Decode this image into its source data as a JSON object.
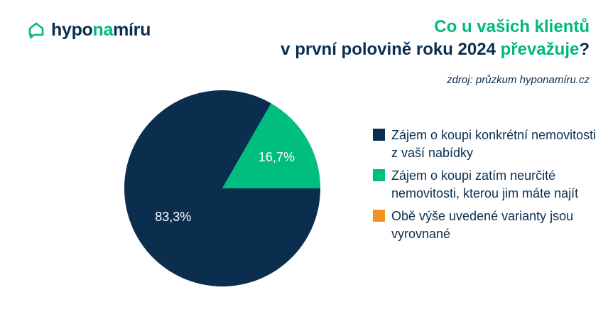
{
  "brand": {
    "name_prefix": "hypo",
    "name_highlight": "na",
    "name_suffix": "míru",
    "logo_icon": "house-chat-icon"
  },
  "header": {
    "title_line1": "Co u vašich klientů",
    "title_line2": "v první polovině roku 2024",
    "title_highlight": "převažuje",
    "title_end": "?",
    "source": "zdroj: průzkum hyponamíru.cz"
  },
  "colors": {
    "navy": "#0b2e4f",
    "green": "#00be7f",
    "orange": "#f39223",
    "slice_label": "#ffffff"
  },
  "chart_data": {
    "type": "pie",
    "slices": [
      {
        "label": "Zájem o koupi konkrétní nemovitosti z vaší nabídky",
        "value": 83.3,
        "display": "83,3%",
        "color": "#0b2e4f"
      },
      {
        "label": "Zájem o koupi zatím neurčité nemovitosti, kterou jim máte najít",
        "value": 16.7,
        "display": "16,7%",
        "color": "#00be7f"
      },
      {
        "label": "Obě výše uvedené varianty jsou vyrovnané",
        "value": 0,
        "display": "",
        "color": "#f39223"
      }
    ],
    "legend_position": "right"
  }
}
